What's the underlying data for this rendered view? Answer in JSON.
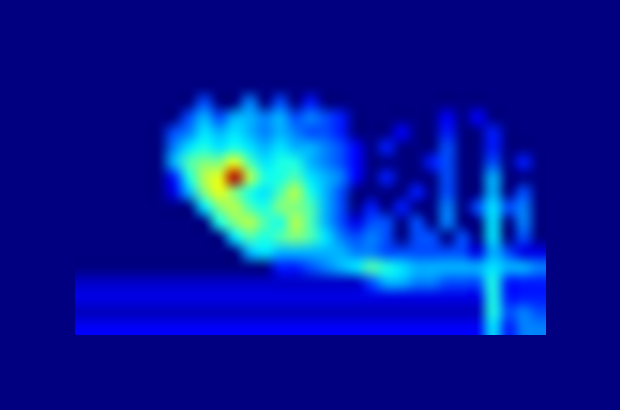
{
  "chart_data": {
    "type": "heatmap",
    "tick_labels": false,
    "zlim": [
      0,
      1
    ],
    "cells": [
      [
        0,
        0,
        0,
        0,
        0,
        0,
        0,
        0,
        0,
        0,
        0,
        0,
        0,
        0,
        0,
        0,
        0,
        0,
        0,
        0,
        0,
        0,
        0,
        0,
        0,
        0,
        0,
        0,
        0,
        0,
        0
      ],
      [
        0,
        0,
        0,
        0,
        0,
        0,
        0,
        0,
        0.2,
        0,
        0,
        0.25,
        0,
        0.2,
        0,
        0.15,
        0,
        0,
        0,
        0,
        0,
        0,
        0,
        0,
        0,
        0,
        0,
        0,
        0,
        0,
        0
      ],
      [
        0,
        0,
        0,
        0,
        0,
        0,
        0,
        0.2,
        0.3,
        0.2,
        0.3,
        0.3,
        0.25,
        0.3,
        0.2,
        0.25,
        0.2,
        0.15,
        0,
        0,
        0,
        0,
        0,
        0,
        0.12,
        0,
        0.12,
        0,
        0,
        0,
        0
      ],
      [
        0,
        0,
        0,
        0,
        0,
        0,
        0.2,
        0.25,
        0.35,
        0.3,
        0.35,
        0.3,
        0.25,
        0.3,
        0.25,
        0.2,
        0.2,
        0.15,
        0,
        0,
        0,
        0.12,
        0,
        0,
        0.15,
        0,
        0,
        0.15,
        0,
        0,
        0
      ],
      [
        0,
        0,
        0,
        0,
        0,
        0,
        0.25,
        0.35,
        0.4,
        0.35,
        0.4,
        0.35,
        0.3,
        0.35,
        0.3,
        0.3,
        0.25,
        0.2,
        0.12,
        0,
        0.15,
        0,
        0,
        0,
        0.2,
        0,
        0,
        0.15,
        0,
        0,
        0
      ],
      [
        0,
        0,
        0,
        0,
        0,
        0,
        0.3,
        0.45,
        0.5,
        0.5,
        0.6,
        0.45,
        0.35,
        0.4,
        0.4,
        0.3,
        0.25,
        0.2,
        0.12,
        0,
        0,
        0,
        0,
        0.15,
        0.2,
        0,
        0,
        0.2,
        0,
        0.15,
        0
      ],
      [
        0,
        0,
        0,
        0,
        0,
        0,
        0.15,
        0.4,
        0.55,
        0.6,
        0.95,
        0.55,
        0.4,
        0.4,
        0.45,
        0.35,
        0.3,
        0.25,
        0.12,
        0,
        0.15,
        0,
        0,
        0,
        0.2,
        0,
        0,
        0.3,
        0,
        0,
        0
      ],
      [
        0,
        0,
        0,
        0,
        0,
        0,
        0.1,
        0.3,
        0.5,
        0.6,
        0.5,
        0.4,
        0.35,
        0.45,
        0.55,
        0.4,
        0.3,
        0.2,
        0,
        0,
        0,
        0,
        0.15,
        0,
        0.2,
        0,
        0,
        0.3,
        0,
        0.2,
        0
      ],
      [
        0,
        0,
        0,
        0,
        0,
        0,
        0,
        0,
        0.35,
        0.5,
        0.55,
        0.45,
        0.4,
        0.5,
        0.5,
        0.45,
        0.3,
        0.2,
        0,
        0.15,
        0,
        0.15,
        0,
        0,
        0.25,
        0,
        0.2,
        0.35,
        0.2,
        0.25,
        0
      ],
      [
        0,
        0,
        0,
        0,
        0,
        0,
        0,
        0,
        0,
        0.4,
        0.5,
        0.55,
        0.45,
        0.4,
        0.55,
        0.45,
        0.3,
        0.2,
        0.1,
        0.2,
        0.2,
        0,
        0.2,
        0,
        0.25,
        0,
        0,
        0.35,
        0,
        0.25,
        0
      ],
      [
        0,
        0,
        0,
        0,
        0,
        0,
        0,
        0,
        0,
        0,
        0.35,
        0.45,
        0.4,
        0.45,
        0.5,
        0.45,
        0.35,
        0.25,
        0.2,
        0.25,
        0.2,
        0,
        0.2,
        0.2,
        0,
        0.2,
        0,
        0.35,
        0,
        0.2,
        0
      ],
      [
        0,
        0,
        0,
        0,
        0,
        0,
        0,
        0,
        0,
        0,
        0,
        0.3,
        0.35,
        0.3,
        0.3,
        0.3,
        0.3,
        0.3,
        0.25,
        0.25,
        0.2,
        0.2,
        0.2,
        0.2,
        0.2,
        0.2,
        0.1,
        0.3,
        0.2,
        0.1,
        0.1
      ],
      [
        0,
        0,
        0,
        0,
        0,
        0,
        0,
        0,
        0,
        0,
        0,
        0,
        0,
        0.15,
        0.15,
        0.2,
        0.25,
        0.3,
        0.35,
        0.45,
        0.4,
        0.35,
        0.3,
        0.3,
        0.3,
        0.3,
        0.3,
        0.35,
        0.3,
        0.3,
        0.25
      ],
      [
        0.07,
        0.07,
        0.07,
        0.07,
        0.07,
        0.07,
        0.07,
        0.07,
        0.07,
        0.07,
        0.07,
        0.07,
        0.07,
        0.07,
        0.07,
        0.07,
        0.07,
        0.07,
        0.07,
        0.2,
        0.3,
        0.3,
        0.25,
        0.25,
        0.2,
        0.2,
        0.2,
        0.4,
        0.15,
        0.15,
        0.15
      ],
      [
        0.1,
        0.1,
        0.1,
        0.1,
        0.1,
        0.1,
        0.1,
        0.1,
        0.1,
        0.1,
        0.1,
        0.1,
        0.1,
        0.1,
        0.1,
        0.1,
        0.1,
        0.1,
        0.1,
        0.1,
        0.1,
        0.1,
        0.1,
        0.1,
        0.1,
        0.1,
        0.1,
        0.4,
        0.15,
        0.15,
        0.15
      ],
      [
        0.06,
        0.06,
        0.06,
        0.06,
        0.06,
        0.06,
        0.06,
        0.06,
        0.06,
        0.06,
        0.06,
        0.06,
        0.06,
        0.06,
        0.06,
        0.06,
        0.06,
        0.06,
        0.06,
        0.06,
        0.06,
        0.06,
        0.06,
        0.06,
        0.06,
        0.06,
        0.06,
        0.4,
        0.2,
        0.25,
        0.2
      ],
      [
        0.12,
        0.12,
        0.12,
        0.12,
        0.12,
        0.12,
        0.12,
        0.12,
        0.12,
        0.12,
        0.12,
        0.12,
        0.12,
        0.12,
        0.12,
        0.12,
        0.12,
        0.12,
        0.12,
        0.12,
        0.12,
        0.12,
        0.12,
        0.12,
        0.12,
        0.12,
        0.12,
        0.35,
        0.15,
        0.25,
        0.25
      ]
    ]
  }
}
